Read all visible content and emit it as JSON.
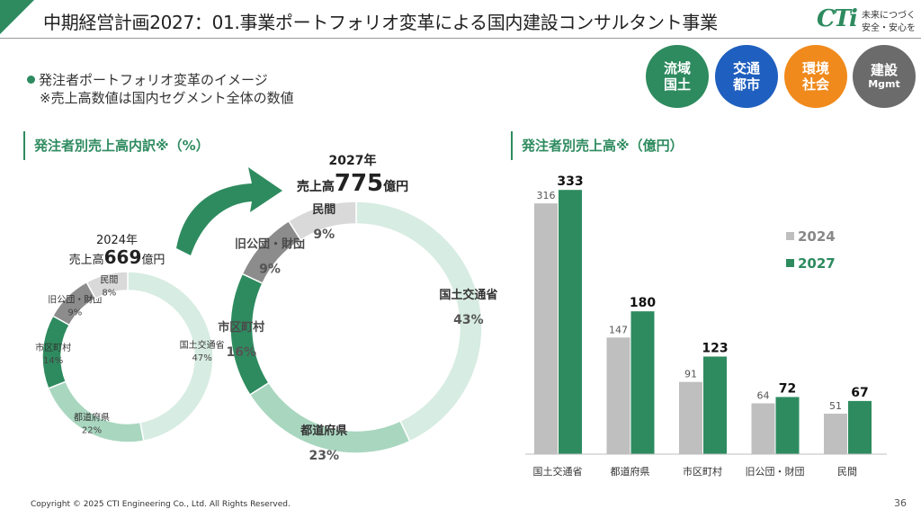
{
  "header": {
    "title": "中期経営計画2027：01.事業ポートフォリオ変革による国内建設コンサルタント事業"
  },
  "logo": {
    "mark": "CTi",
    "tagline_line1": "未来につづく",
    "tagline_line2": "安全・安心を"
  },
  "intro": {
    "bullet": "発注者ポートフォリオ変革のイメージ",
    "note": "※売上高数値は国内セグメント全体の数値"
  },
  "pills": [
    {
      "line1": "流域",
      "line2": "国土",
      "color": "#2e8b5f"
    },
    {
      "line1": "交通",
      "line2": "都市",
      "color": "#1f5fbf"
    },
    {
      "line1": "環境",
      "line2": "社会",
      "color": "#f08a1c"
    },
    {
      "line1": "建設",
      "line2": "Mgmt",
      "color": "#6b6b6b"
    }
  ],
  "sections": {
    "left_heading": "発注者別売上高内訳※（%）",
    "right_heading": "発注者別売上高※（億円）"
  },
  "donut_labels": {
    "small_year": "2024年",
    "small_prefix": "売上高",
    "small_value": "669",
    "small_unit": "億円",
    "large_year": "2027年",
    "large_prefix": "売上高",
    "large_value": "775",
    "large_unit": "億円"
  },
  "colors": {
    "brand_green": "#2e8b5f",
    "bar_gray": "#bfbfbf",
    "donut_segments": [
      "#d7ece2",
      "#a9d6bf",
      "#2e8b5f",
      "#8c8c8c",
      "#d9d9d9"
    ]
  },
  "chart_data": [
    {
      "type": "pie",
      "title": "2024年",
      "categories": [
        "国土交通省",
        "都道府県",
        "市区町村",
        "旧公団・財団",
        "民間"
      ],
      "values": [
        47,
        22,
        14,
        9,
        8
      ],
      "unit": "%"
    },
    {
      "type": "pie",
      "title": "2027年",
      "categories": [
        "国土交通省",
        "都道府県",
        "市区町村",
        "旧公団・財団",
        "民間"
      ],
      "values": [
        43,
        23,
        16,
        9,
        9
      ],
      "unit": "%"
    },
    {
      "type": "bar",
      "categories": [
        "国土交通省",
        "都道府県",
        "市区町村",
        "旧公団・財団",
        "民間"
      ],
      "series": [
        {
          "name": "2024",
          "values": [
            316,
            147,
            91,
            64,
            51
          ],
          "color": "#bfbfbf"
        },
        {
          "name": "2027",
          "values": [
            333,
            180,
            123,
            72,
            67
          ],
          "color": "#2e8b5f"
        }
      ],
      "ylim": [
        0,
        340
      ],
      "grid": false,
      "legend": "right"
    }
  ],
  "footer": {
    "copyright": "Copyright © 2025 CTI Engineering Co., Ltd. All Rights Reserved.",
    "page": "36"
  }
}
